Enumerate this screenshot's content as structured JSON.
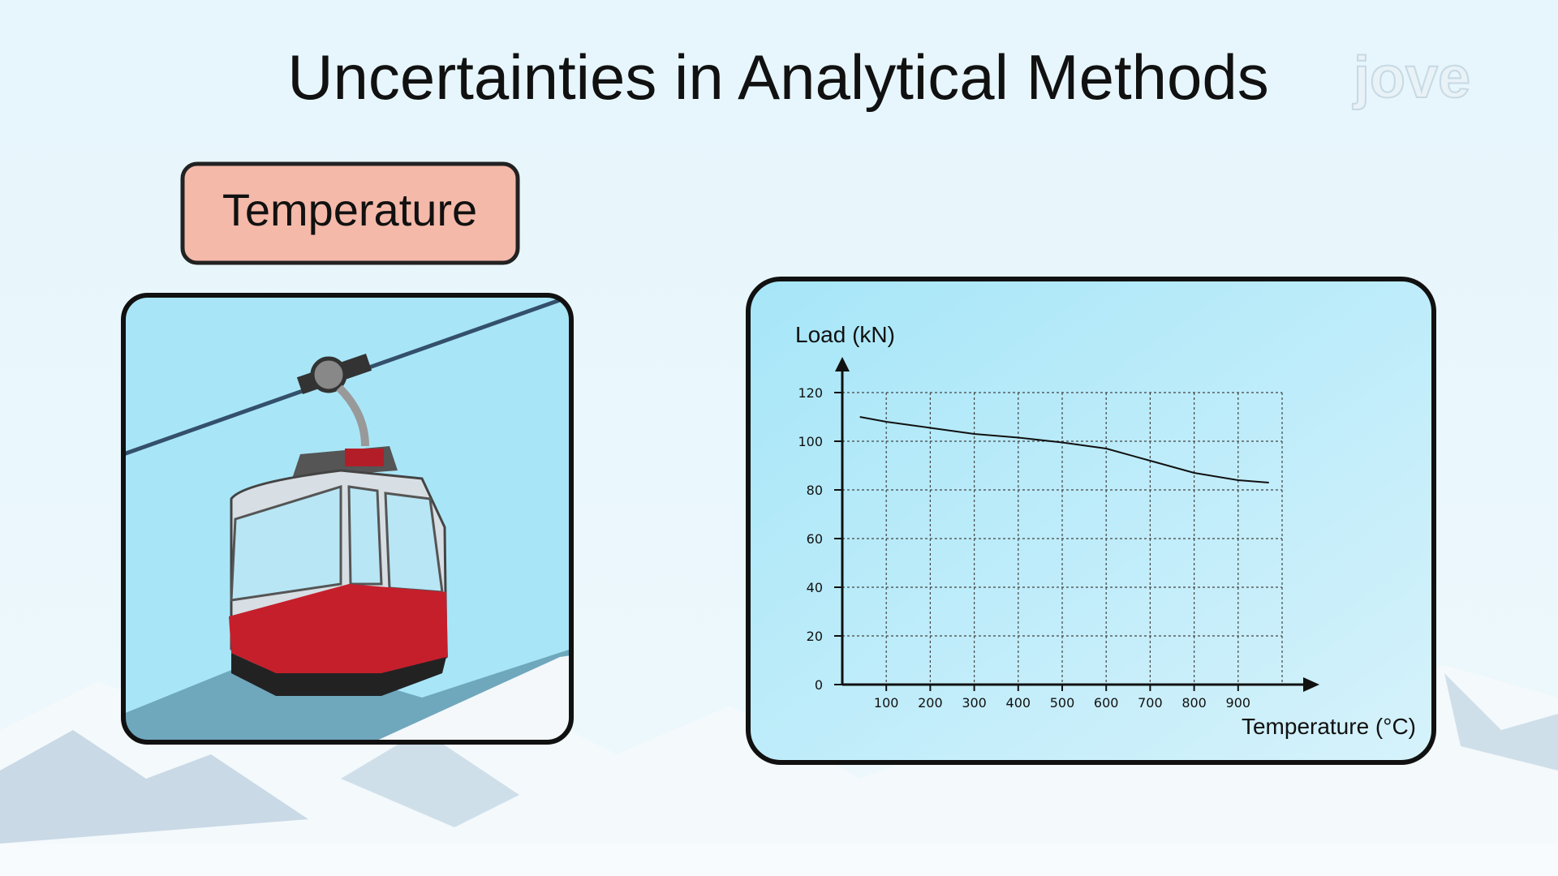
{
  "slide": {
    "title": "Uncertainties in Analytical Methods",
    "label": "Temperature",
    "logo": "jove"
  },
  "chart_data": {
    "type": "line",
    "y_label": "Load (kN)",
    "x_label": "Temperature (°C)",
    "x": [
      40,
      100,
      200,
      300,
      400,
      500,
      600,
      700,
      800,
      900,
      970
    ],
    "values": [
      110,
      108,
      105.5,
      103,
      101.5,
      99.5,
      97,
      92,
      87,
      84,
      83
    ],
    "color": "#111111",
    "xlim": [
      0,
      1000
    ],
    "ylim": [
      0,
      120
    ],
    "xticks": [
      100,
      200,
      300,
      400,
      500,
      600,
      700,
      800,
      900
    ],
    "yticks": [
      0,
      20,
      40,
      60,
      80,
      100,
      120
    ],
    "grid": true
  }
}
